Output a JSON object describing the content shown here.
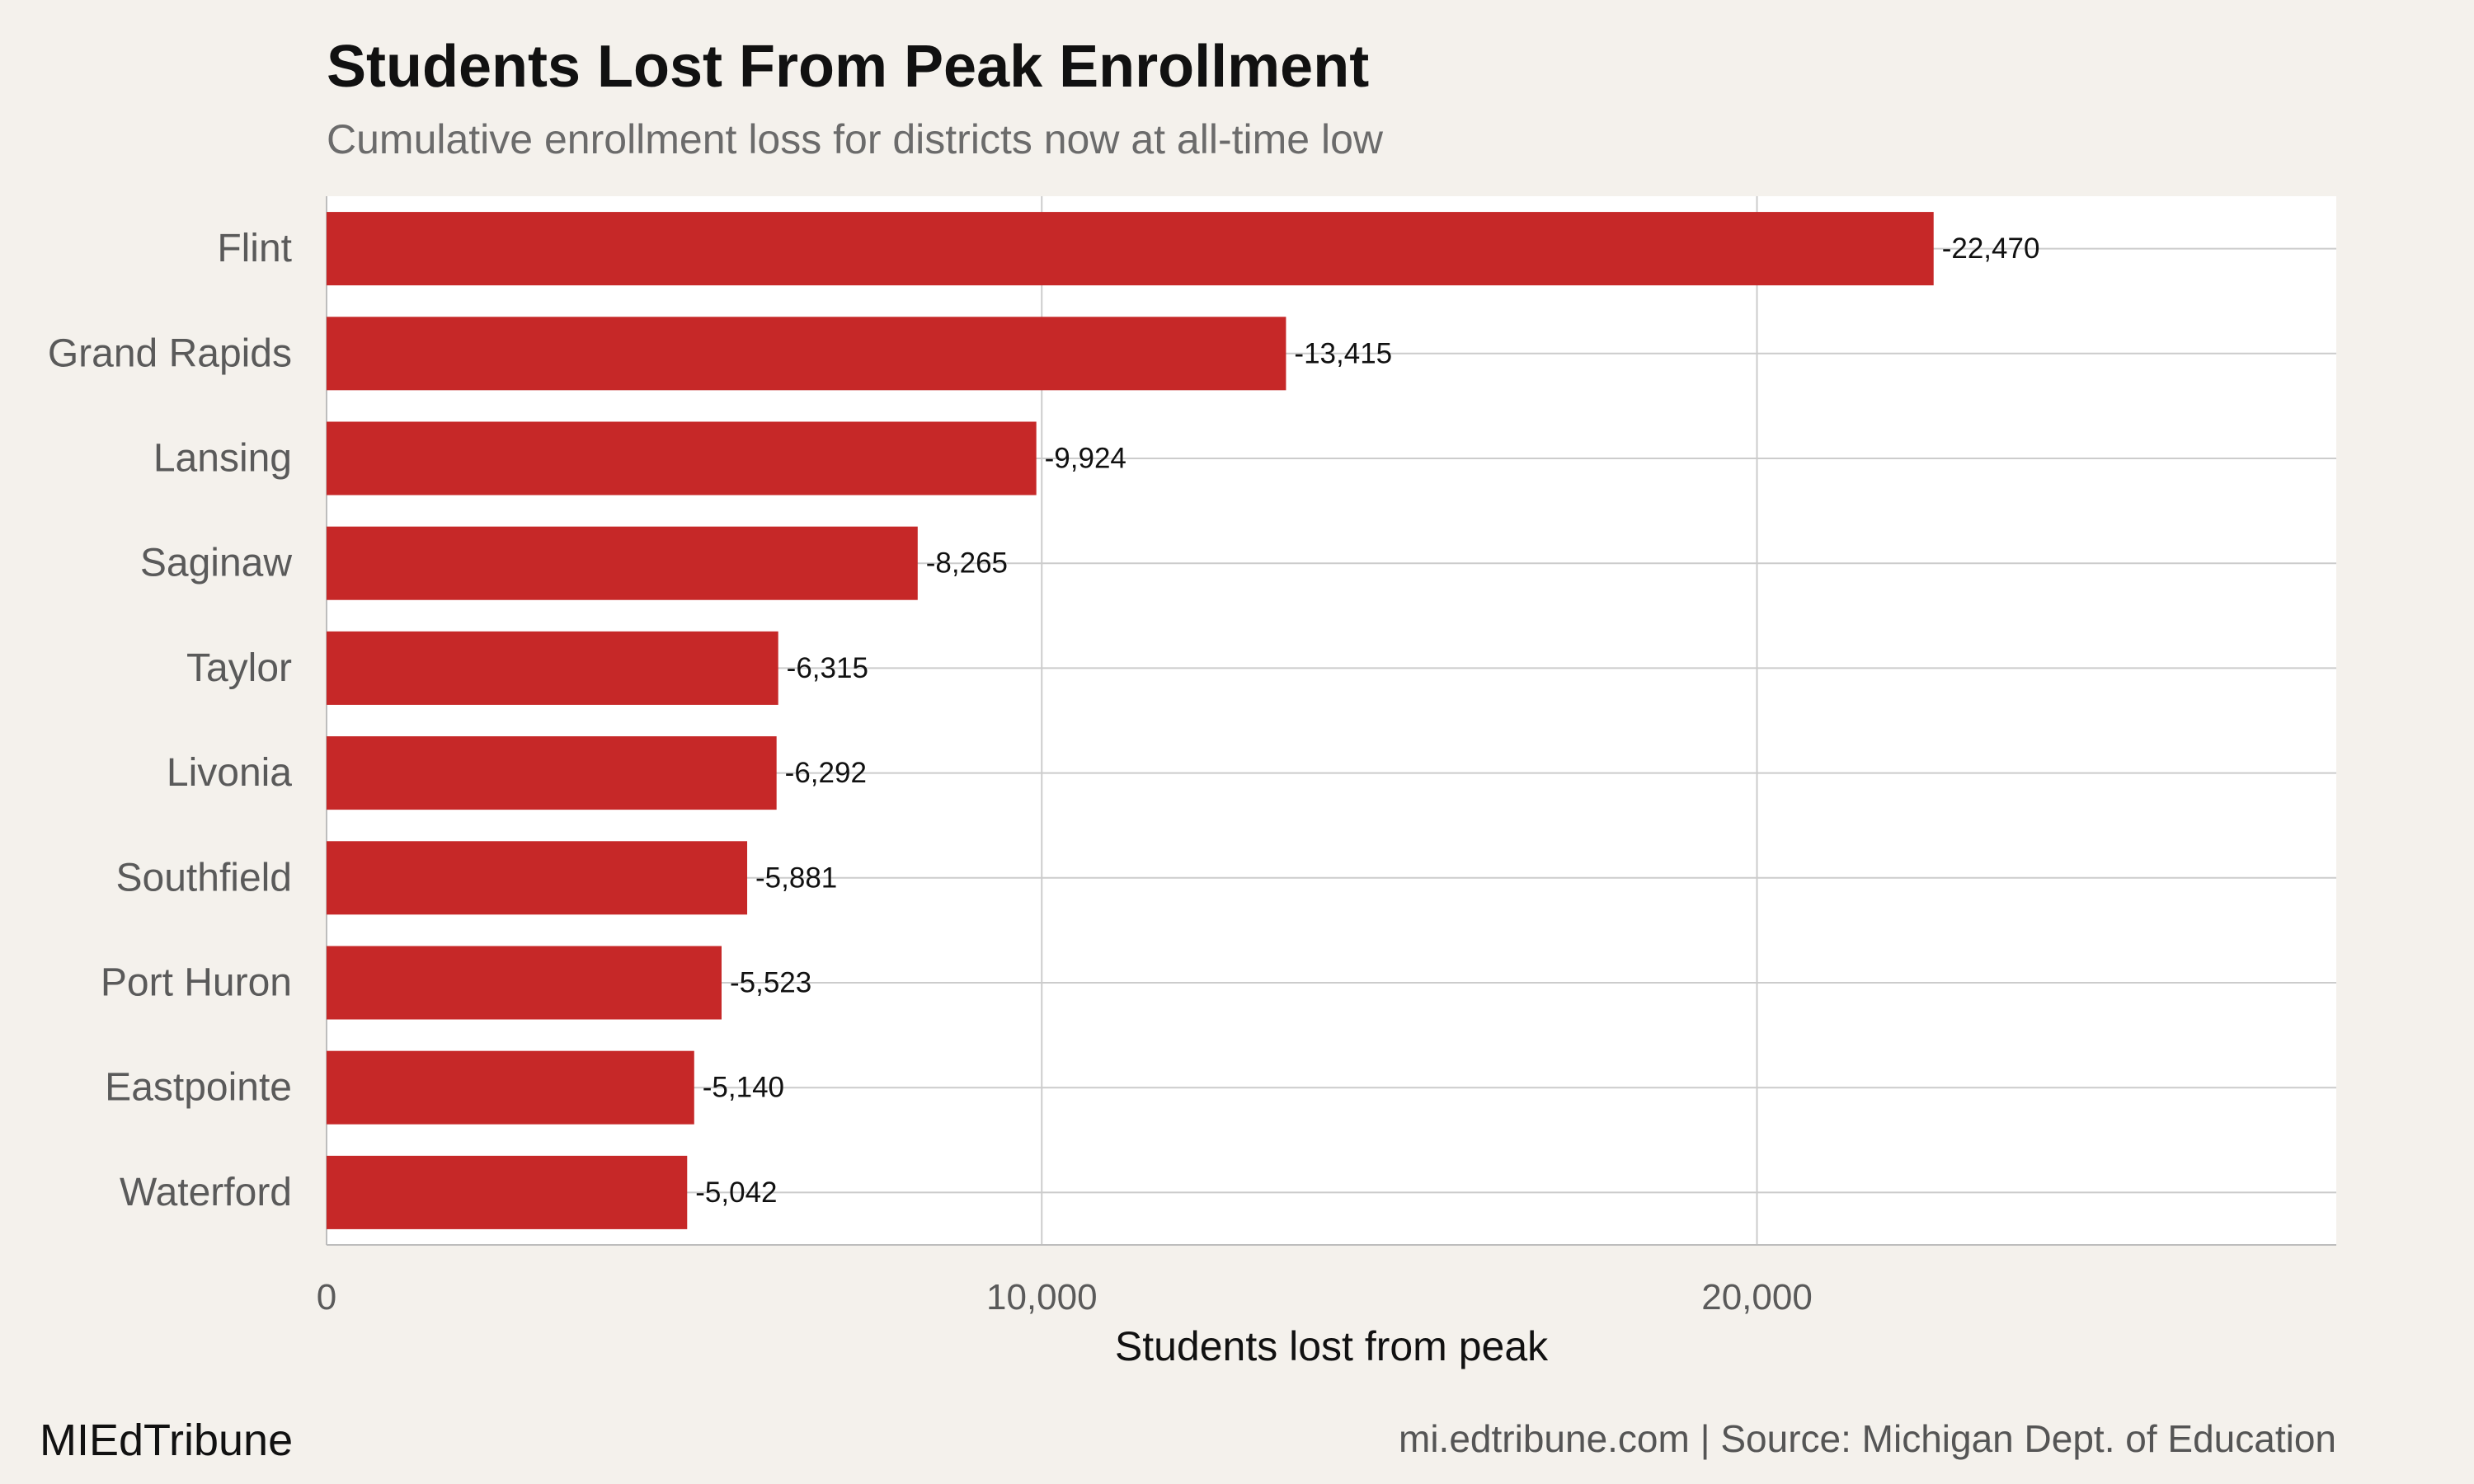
{
  "header": {
    "title": "Students Lost From Peak Enrollment",
    "subtitle": "Cumulative enrollment loss for districts now at all-time low"
  },
  "footer": {
    "brand": "MIEdTribune",
    "source": "mi.edtribune.com | Source: Michigan Dept. of Education"
  },
  "colors": {
    "bar": "#c62828",
    "panel": "#ffffff",
    "background": "#f4f1ec",
    "grid": "#cccccc"
  },
  "chart_data": {
    "type": "bar",
    "orientation": "horizontal",
    "categories": [
      "Flint",
      "Grand Rapids",
      "Lansing",
      "Saginaw",
      "Taylor",
      "Livonia",
      "Southfield",
      "Port Huron",
      "Eastpointe",
      "Waterford"
    ],
    "values": [
      22470,
      13415,
      9924,
      8265,
      6315,
      6292,
      5881,
      5523,
      5140,
      5042
    ],
    "data_labels": [
      "-22,470",
      "-13,415",
      "-9,924",
      "-8,265",
      "-6,315",
      "-6,292",
      "-5,881",
      "-5,523",
      "-5,140",
      "-5,042"
    ],
    "xlabel": "Students lost from peak",
    "xlim": [
      0,
      28100
    ],
    "xticks": [
      0,
      10000,
      20000
    ],
    "xtick_labels": [
      "0",
      "10,000",
      "20,000"
    ],
    "grid": true
  }
}
